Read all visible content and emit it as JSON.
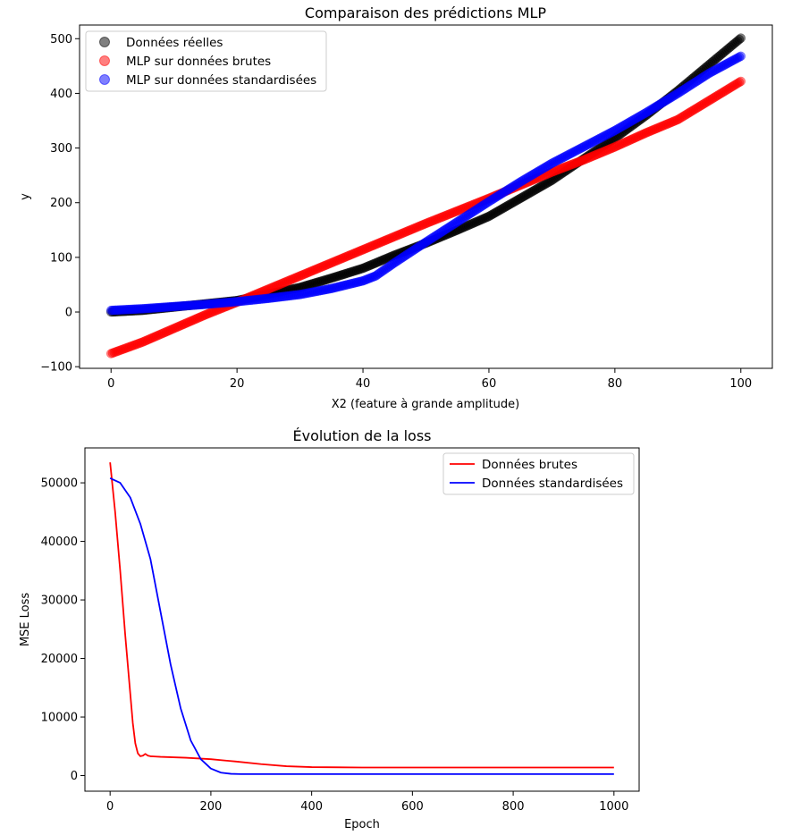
{
  "chart_data": [
    {
      "type": "scatter",
      "title": "Comparaison des prédictions MLP",
      "xlabel": "X2 (feature à grande amplitude)",
      "ylabel": "y",
      "xlim": [
        -5,
        105
      ],
      "ylim": [
        -103,
        525
      ],
      "xticks": [
        0,
        20,
        40,
        60,
        80,
        100
      ],
      "yticks": [
        -100,
        0,
        100,
        200,
        300,
        400,
        500
      ],
      "xtick_labels": [
        "0",
        "20",
        "40",
        "60",
        "80",
        "100"
      ],
      "ytick_labels": [
        "−100",
        "0",
        "100",
        "200",
        "300",
        "400",
        "500"
      ],
      "legend_position": "upper-left",
      "series": [
        {
          "name": "Données réelles",
          "color": "#000000",
          "x": [
            0,
            5,
            10,
            15,
            20,
            25,
            30,
            35,
            40,
            45,
            50,
            55,
            60,
            65,
            70,
            75,
            80,
            85,
            90,
            95,
            100
          ],
          "y": [
            0,
            3,
            9,
            15,
            21,
            33,
            45,
            62,
            80,
            104,
            126,
            150,
            175,
            208,
            241,
            280,
            318,
            360,
            405,
            453,
            501
          ]
        },
        {
          "name": "MLP sur données brutes",
          "color": "#ff0000",
          "x": [
            0,
            5,
            10,
            15,
            20,
            25,
            30,
            35,
            40,
            45,
            50,
            55,
            60,
            65,
            70,
            75,
            80,
            85,
            90,
            95,
            100
          ],
          "y": [
            -76,
            -55,
            -30,
            -5,
            18,
            42,
            66,
            90,
            114,
            138,
            162,
            185,
            208,
            232,
            256,
            278,
            302,
            328,
            352,
            387,
            422
          ]
        },
        {
          "name": "MLP sur données standardisées",
          "color": "#0000ff",
          "x": [
            0,
            5,
            10,
            15,
            20,
            25,
            30,
            35,
            40,
            42,
            45,
            50,
            55,
            60,
            65,
            70,
            75,
            80,
            85,
            90,
            95,
            100
          ],
          "y": [
            3,
            6,
            10,
            14,
            19,
            25,
            32,
            43,
            57,
            66,
            90,
            128,
            165,
            202,
            238,
            272,
            302,
            332,
            365,
            400,
            437,
            468
          ]
        }
      ],
      "marker_density_step": 0.25
    },
    {
      "type": "line",
      "title": "Évolution de la loss",
      "xlabel": "Epoch",
      "ylabel": "MSE Loss",
      "xlim": [
        -50,
        1050
      ],
      "ylim": [
        -2667,
        55967
      ],
      "xticks": [
        0,
        200,
        400,
        600,
        800,
        1000
      ],
      "yticks": [
        0,
        10000,
        20000,
        30000,
        40000,
        50000
      ],
      "xtick_labels": [
        "0",
        "200",
        "400",
        "600",
        "800",
        "1000"
      ],
      "ytick_labels": [
        "0",
        "10000",
        "20000",
        "30000",
        "40000",
        "50000"
      ],
      "legend_position": "upper-right",
      "series": [
        {
          "name": "Données brutes",
          "color": "#ff0000",
          "x": [
            0,
            10,
            20,
            30,
            40,
            45,
            50,
            55,
            60,
            65,
            70,
            75,
            80,
            90,
            100,
            150,
            200,
            250,
            300,
            350,
            400,
            500,
            600,
            700,
            800,
            900,
            1000
          ],
          "y": [
            53500,
            45000,
            35000,
            24000,
            14000,
            9000,
            5500,
            3800,
            3300,
            3400,
            3700,
            3400,
            3300,
            3250,
            3200,
            3050,
            2800,
            2400,
            1950,
            1600,
            1450,
            1380,
            1380,
            1380,
            1380,
            1380,
            1380
          ]
        },
        {
          "name": "Données standardisées",
          "color": "#0000ff",
          "x": [
            0,
            20,
            40,
            60,
            80,
            100,
            120,
            140,
            160,
            180,
            200,
            220,
            240,
            260,
            300,
            400,
            600,
            800,
            1000
          ],
          "y": [
            50800,
            50000,
            47500,
            43000,
            37000,
            28000,
            19000,
            11500,
            6000,
            2800,
            1200,
            500,
            300,
            250,
            250,
            250,
            250,
            250,
            250
          ]
        }
      ]
    }
  ]
}
